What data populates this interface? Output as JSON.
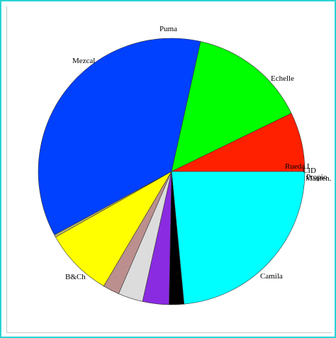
{
  "chart_data": {
    "type": "pie",
    "slices": [
      {
        "label": "Echelle",
        "value": 23.5,
        "color": "#00ffff"
      },
      {
        "label": "Manten.",
        "value": 1.8,
        "color": "#000000"
      },
      {
        "label": "Propio",
        "value": 3.2,
        "color": "#8a2be2"
      },
      {
        "label": "CID",
        "value": 3.0,
        "color": "#dcdcdc"
      },
      {
        "label": "Rueda I",
        "value": 2.0,
        "color": "#bc8f8f"
      },
      {
        "label": "Camila",
        "value": 8.3,
        "color": "#ffff00"
      },
      {
        "label": "",
        "value": 0.3,
        "color": "#bdb76b"
      },
      {
        "label": "B&Ch",
        "value": 36.4,
        "color": "#0040ff"
      },
      {
        "label": "Mezcal",
        "value": 14.3,
        "color": "#00ff00"
      },
      {
        "label": "Puma",
        "value": 7.2,
        "color": "#ff2000"
      }
    ]
  }
}
